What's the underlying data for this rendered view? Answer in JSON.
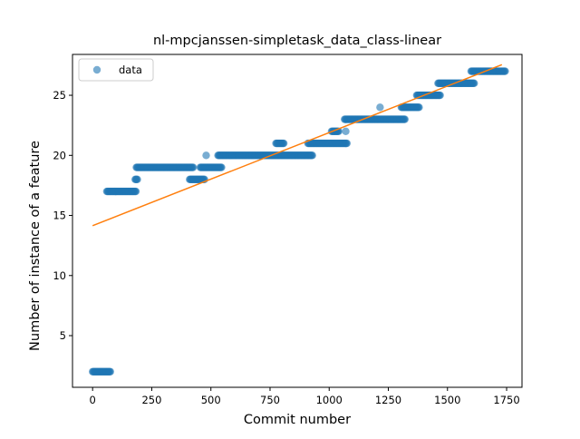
{
  "chart_data": {
    "type": "scatter",
    "title": "nl-mpcjanssen-simpletask_data_class-linear",
    "xlabel": "Commit number",
    "ylabel": "Number of instance of a feature",
    "xlim": [
      -85,
      1815
    ],
    "ylim": [
      0.7,
      28.4
    ],
    "xticks": [
      0,
      250,
      500,
      750,
      1000,
      1250,
      1500,
      1750
    ],
    "yticks": [
      5,
      10,
      15,
      20,
      25
    ],
    "grid": false,
    "legend": {
      "position": "top-left",
      "entries": [
        "data"
      ]
    },
    "colors": {
      "data": "#1f77b4",
      "fit": "#ff7f0e"
    },
    "segments": [
      {
        "x_start": 0,
        "x_end": 75,
        "y": 2
      },
      {
        "x_start": 60,
        "x_end": 185,
        "y": 17
      },
      {
        "x_start": 180,
        "x_end": 190,
        "y": 18
      },
      {
        "x_start": 185,
        "x_end": 425,
        "y": 19
      },
      {
        "x_start": 410,
        "x_end": 475,
        "y": 18
      },
      {
        "x_start": 455,
        "x_end": 545,
        "y": 19
      },
      {
        "x_start": 530,
        "x_end": 930,
        "y": 20
      },
      {
        "x_start": 775,
        "x_end": 810,
        "y": 21
      },
      {
        "x_start": 910,
        "x_end": 1075,
        "y": 21
      },
      {
        "x_start": 1010,
        "x_end": 1040,
        "y": 22
      },
      {
        "x_start": 1065,
        "x_end": 1320,
        "y": 23
      },
      {
        "x_start": 1305,
        "x_end": 1380,
        "y": 24
      },
      {
        "x_start": 1370,
        "x_end": 1470,
        "y": 25
      },
      {
        "x_start": 1460,
        "x_end": 1615,
        "y": 26
      },
      {
        "x_start": 1600,
        "x_end": 1745,
        "y": 27
      }
    ],
    "extra_points": [
      {
        "x": 480,
        "y": 20
      },
      {
        "x": 1070,
        "y": 22
      },
      {
        "x": 1215,
        "y": 24
      }
    ],
    "fit_line": {
      "x": [
        0,
        1730
      ],
      "y": [
        14.15,
        27.55
      ]
    }
  }
}
